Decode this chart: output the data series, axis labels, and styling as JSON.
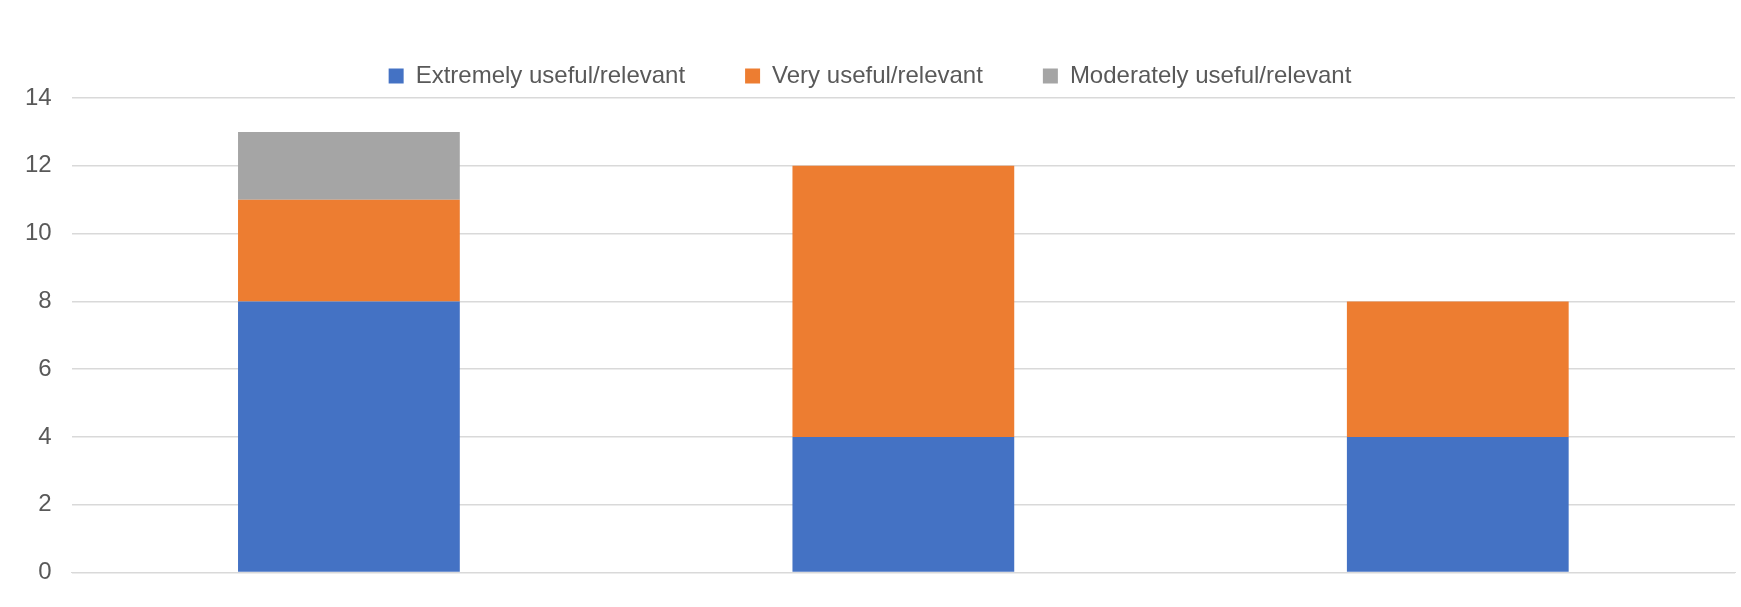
{
  "chart_data": {
    "type": "bar",
    "stacked": true,
    "categories": [
      null,
      null,
      null
    ],
    "series": [
      {
        "name": "Extremely useful/relevant",
        "color": "#4472c4",
        "values": [
          8,
          4,
          4
        ]
      },
      {
        "name": "Very useful/relevant",
        "color": "#ed7d31",
        "values": [
          3,
          8,
          4
        ]
      },
      {
        "name": "Moderately useful/relevant",
        "color": "#a5a5a5",
        "values": [
          2,
          null,
          null
        ]
      }
    ],
    "ylim": [
      0,
      14
    ],
    "yticks": [
      0,
      2,
      4,
      6,
      8,
      10,
      12,
      14
    ],
    "grid": "y",
    "legend": "top"
  }
}
